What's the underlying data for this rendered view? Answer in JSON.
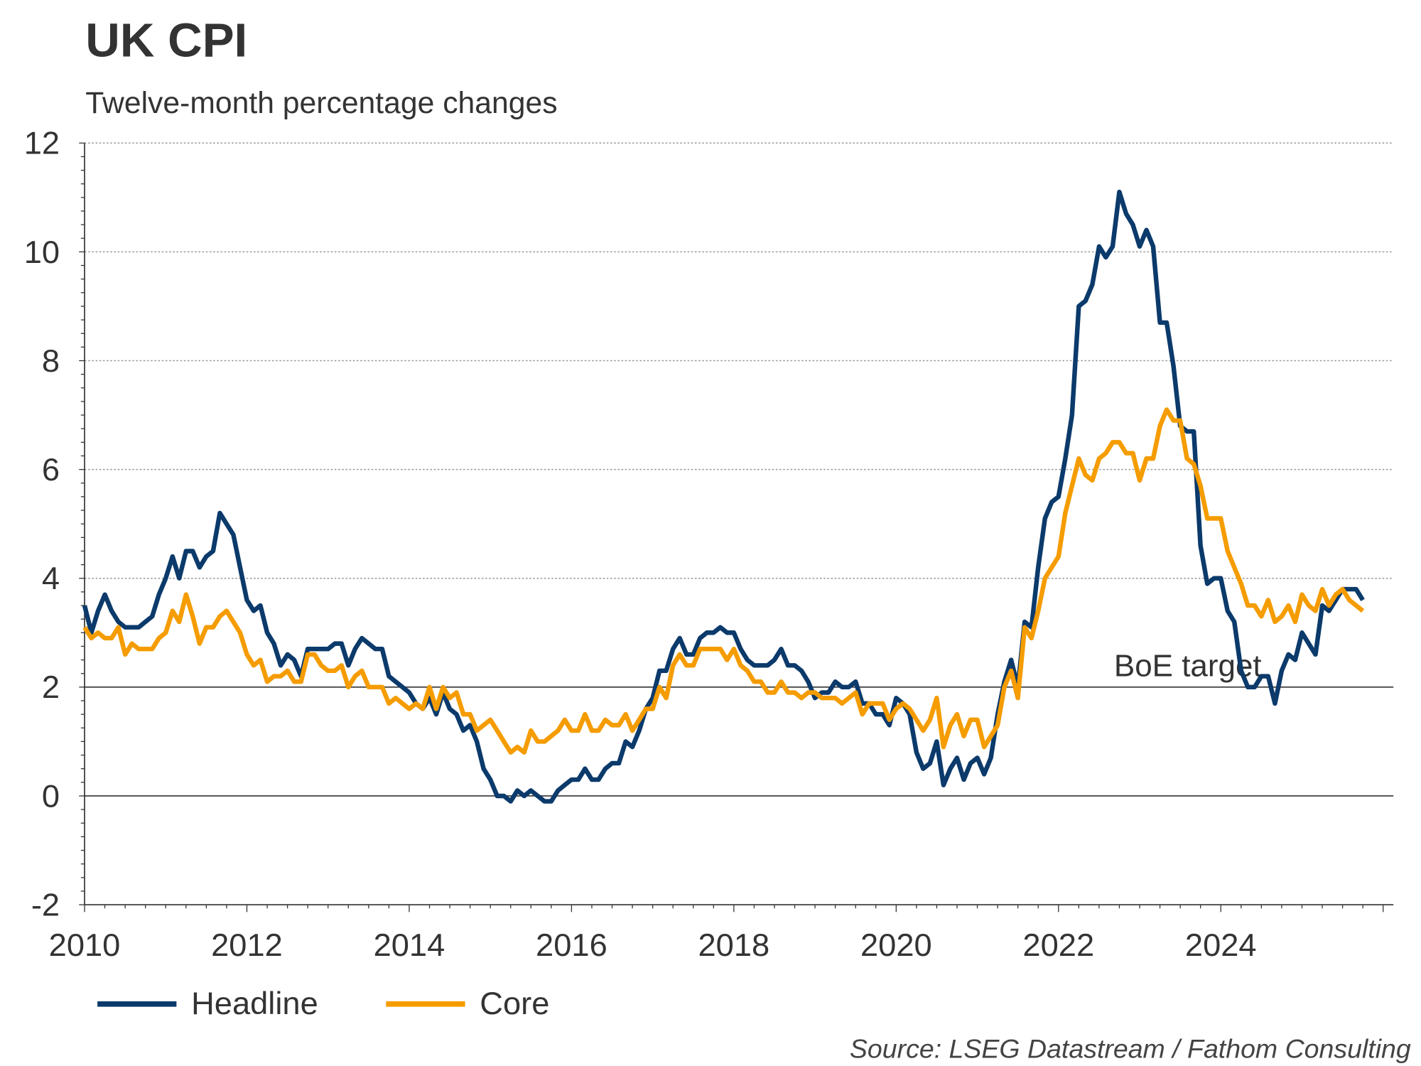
{
  "chart_data": {
    "type": "line",
    "title": "UK CPI",
    "subtitle": "Twelve-month percentage changes",
    "xlabel": "",
    "ylabel": "",
    "ylim": [
      -2,
      12
    ],
    "yticks": [
      "-2",
      "0",
      "2",
      "4",
      "6",
      "8",
      "10",
      "12"
    ],
    "xlim": [
      2010,
      2026.1
    ],
    "xticks": [
      "2010",
      "2012",
      "2014",
      "2016",
      "2018",
      "2020",
      "2022",
      "2024"
    ],
    "grid": "horizontal dotted",
    "start": "2010-01",
    "frequency": "monthly",
    "reference_line": {
      "value": 2,
      "label": "BoE target"
    },
    "legend_position": "bottom-left",
    "source": "Source: LSEG Datastream / Fathom Consulting",
    "series": [
      {
        "name": "Headline",
        "color": "#0b3a6b",
        "values": [
          3.5,
          3.0,
          3.4,
          3.7,
          3.4,
          3.2,
          3.1,
          3.1,
          3.1,
          3.2,
          3.3,
          3.7,
          4.0,
          4.4,
          4.0,
          4.5,
          4.5,
          4.2,
          4.4,
          4.5,
          5.2,
          5.0,
          4.8,
          4.2,
          3.6,
          3.4,
          3.5,
          3.0,
          2.8,
          2.4,
          2.6,
          2.5,
          2.2,
          2.7,
          2.7,
          2.7,
          2.7,
          2.8,
          2.8,
          2.4,
          2.7,
          2.9,
          2.8,
          2.7,
          2.7,
          2.2,
          2.1,
          2.0,
          1.9,
          1.7,
          1.6,
          1.8,
          1.5,
          1.9,
          1.6,
          1.5,
          1.2,
          1.3,
          1.0,
          0.5,
          0.3,
          0.0,
          0.0,
          -0.1,
          0.1,
          0.0,
          0.1,
          0.0,
          -0.1,
          -0.1,
          0.1,
          0.2,
          0.3,
          0.3,
          0.5,
          0.3,
          0.3,
          0.5,
          0.6,
          0.6,
          1.0,
          0.9,
          1.2,
          1.6,
          1.8,
          2.3,
          2.3,
          2.7,
          2.9,
          2.6,
          2.6,
          2.9,
          3.0,
          3.0,
          3.1,
          3.0,
          3.0,
          2.7,
          2.5,
          2.4,
          2.4,
          2.4,
          2.5,
          2.7,
          2.4,
          2.4,
          2.3,
          2.1,
          1.8,
          1.9,
          1.9,
          2.1,
          2.0,
          2.0,
          2.1,
          1.7,
          1.7,
          1.5,
          1.5,
          1.3,
          1.8,
          1.7,
          1.5,
          0.8,
          0.5,
          0.6,
          1.0,
          0.2,
          0.5,
          0.7,
          0.3,
          0.6,
          0.7,
          0.4,
          0.7,
          1.5,
          2.1,
          2.5,
          2.0,
          3.2,
          3.1,
          4.2,
          5.1,
          5.4,
          5.5,
          6.2,
          7.0,
          9.0,
          9.1,
          9.4,
          10.1,
          9.9,
          10.1,
          11.1,
          10.7,
          10.5,
          10.1,
          10.4,
          10.1,
          8.7,
          8.7,
          7.9,
          6.8,
          6.7,
          6.7,
          4.6,
          3.9,
          4.0,
          4.0,
          3.4,
          3.2,
          2.3,
          2.0,
          2.0,
          2.2,
          2.2,
          1.7,
          2.3,
          2.6,
          2.5,
          3.0,
          2.8,
          2.6,
          3.5,
          3.4,
          3.6,
          3.8,
          3.8,
          3.8,
          3.6
        ]
      },
      {
        "name": "Core",
        "color": "#f59c00",
        "values": [
          3.1,
          2.9,
          3.0,
          2.9,
          2.9,
          3.1,
          2.6,
          2.8,
          2.7,
          2.7,
          2.7,
          2.9,
          3.0,
          3.4,
          3.2,
          3.7,
          3.3,
          2.8,
          3.1,
          3.1,
          3.3,
          3.4,
          3.2,
          3.0,
          2.6,
          2.4,
          2.5,
          2.1,
          2.2,
          2.2,
          2.3,
          2.1,
          2.1,
          2.6,
          2.6,
          2.4,
          2.3,
          2.3,
          2.4,
          2.0,
          2.2,
          2.3,
          2.0,
          2.0,
          2.0,
          1.7,
          1.8,
          1.7,
          1.6,
          1.7,
          1.6,
          2.0,
          1.6,
          2.0,
          1.8,
          1.9,
          1.5,
          1.5,
          1.2,
          1.3,
          1.4,
          1.2,
          1.0,
          0.8,
          0.9,
          0.8,
          1.2,
          1.0,
          1.0,
          1.1,
          1.2,
          1.4,
          1.2,
          1.2,
          1.5,
          1.2,
          1.2,
          1.4,
          1.3,
          1.3,
          1.5,
          1.2,
          1.4,
          1.6,
          1.6,
          2.0,
          1.8,
          2.4,
          2.6,
          2.4,
          2.4,
          2.7,
          2.7,
          2.7,
          2.7,
          2.5,
          2.7,
          2.4,
          2.3,
          2.1,
          2.1,
          1.9,
          1.9,
          2.1,
          1.9,
          1.9,
          1.8,
          1.9,
          1.9,
          1.8,
          1.8,
          1.8,
          1.7,
          1.8,
          1.9,
          1.5,
          1.7,
          1.7,
          1.7,
          1.4,
          1.6,
          1.7,
          1.6,
          1.4,
          1.2,
          1.4,
          1.8,
          0.9,
          1.3,
          1.5,
          1.1,
          1.4,
          1.4,
          0.9,
          1.1,
          1.3,
          2.0,
          2.3,
          1.8,
          3.1,
          2.9,
          3.4,
          4.0,
          4.2,
          4.4,
          5.2,
          5.7,
          6.2,
          5.9,
          5.8,
          6.2,
          6.3,
          6.5,
          6.5,
          6.3,
          6.3,
          5.8,
          6.2,
          6.2,
          6.8,
          7.1,
          6.9,
          6.9,
          6.2,
          6.1,
          5.7,
          5.1,
          5.1,
          5.1,
          4.5,
          4.2,
          3.9,
          3.5,
          3.5,
          3.3,
          3.6,
          3.2,
          3.3,
          3.5,
          3.2,
          3.7,
          3.5,
          3.4,
          3.8,
          3.5,
          3.7,
          3.8,
          3.6,
          3.5,
          3.4
        ]
      }
    ]
  }
}
